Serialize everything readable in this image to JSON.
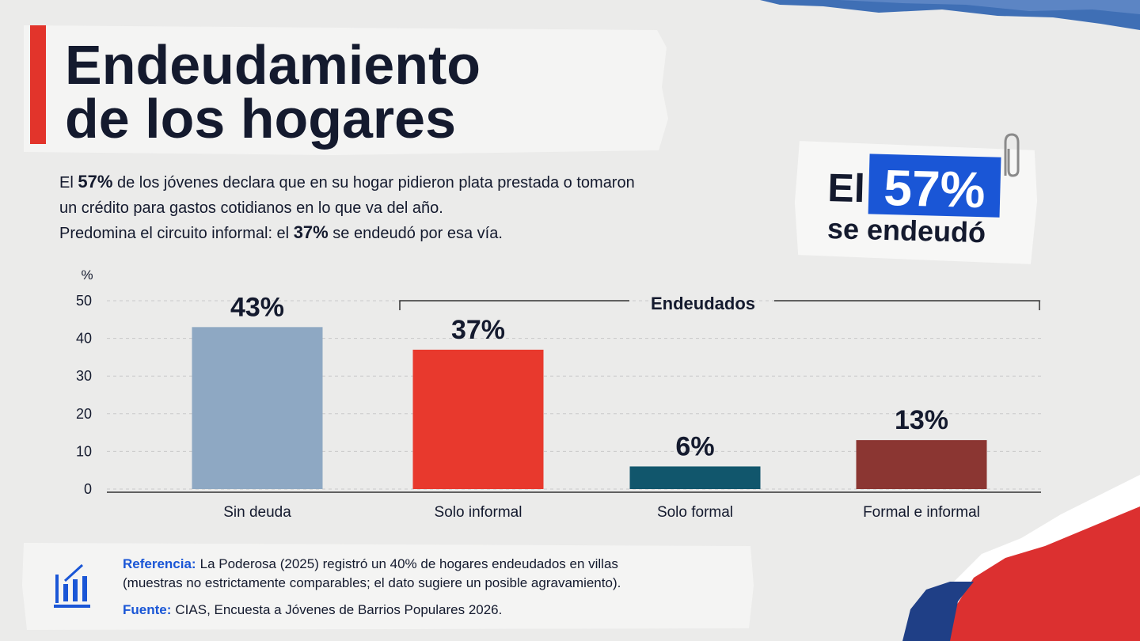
{
  "title": [
    "Endeudamiento",
    "de los hogares"
  ],
  "subtitle": [
    [
      {
        "text": "El ",
        "bold": false
      },
      {
        "text": "57%",
        "bold": true
      },
      {
        "text": " de los jóvenes declara que en su hogar pidieron plata prestada o tomaron",
        "bold": false
      }
    ],
    [
      {
        "text": "un crédito para gastos cotidianos en lo que va del año.",
        "bold": false
      }
    ],
    [
      {
        "text": "Predomina el circuito informal: el ",
        "bold": false
      },
      {
        "text": "37%",
        "bold": true
      },
      {
        "text": " se endeudó por esa vía.",
        "bold": false
      }
    ]
  ],
  "callout": {
    "prefix": "El",
    "highlight": "57%",
    "suffix": "se endeudó"
  },
  "chart_data": {
    "type": "bar",
    "y_label": "%",
    "categories": [
      "Sin deuda",
      "Solo informal",
      "Solo formal",
      "Formal e informal"
    ],
    "values": [
      43,
      37,
      6,
      13
    ],
    "value_labels": [
      "43%",
      "37%",
      "6%",
      "13%"
    ],
    "colors": [
      "#8ea8c3",
      "#e8392d",
      "#11566c",
      "#8b3632"
    ],
    "ylim": [
      0,
      50
    ],
    "yticks": [
      0,
      10,
      20,
      30,
      40,
      50
    ],
    "grid": true,
    "annotation": "Endeudados"
  },
  "footer": {
    "reference_label": "Referencia:",
    "reference_text": [
      "La Poderosa (2025) registró un 40% de hogares endeudados en villas",
      "(muestras no estrictamente comparables; el dato sugiere un posible agravamiento)."
    ],
    "source_label": "Fuente:",
    "source_text": "CIAS, Encuesta a Jóvenes de Barrios Populares 2026."
  }
}
